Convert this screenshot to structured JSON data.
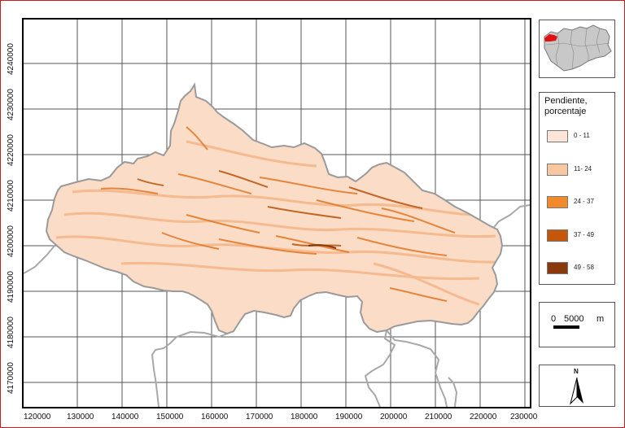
{
  "map": {
    "y_ticks": [
      "4240000",
      "4230000",
      "4220000",
      "4210000",
      "4200000",
      "4190000",
      "4180000",
      "4170000"
    ],
    "x_ticks": [
      "120000",
      "130000",
      "140000",
      "150000",
      "160000",
      "170000",
      "180000",
      "190000",
      "200000",
      "210000",
      "220000",
      "230000"
    ]
  },
  "legend": {
    "title_line1": "Pendiente,",
    "title_line2": "porcentaje",
    "classes": [
      {
        "label": "0 - 11",
        "color": "#fde6d8"
      },
      {
        "label": "11- 24",
        "color": "#f7c8a0"
      },
      {
        "label": "24 - 37",
        "color": "#f28a2c"
      },
      {
        "label": "37 - 49",
        "color": "#c4570a"
      },
      {
        "label": "49 - 58",
        "color": "#8a3a0a"
      }
    ]
  },
  "scale_bar": {
    "zero": "0",
    "value": "5000",
    "unit": "m"
  },
  "north_arrow": {
    "label": "N"
  },
  "locator": {
    "highlight_color": "#e01010",
    "region_color": "#c8c8c8"
  }
}
